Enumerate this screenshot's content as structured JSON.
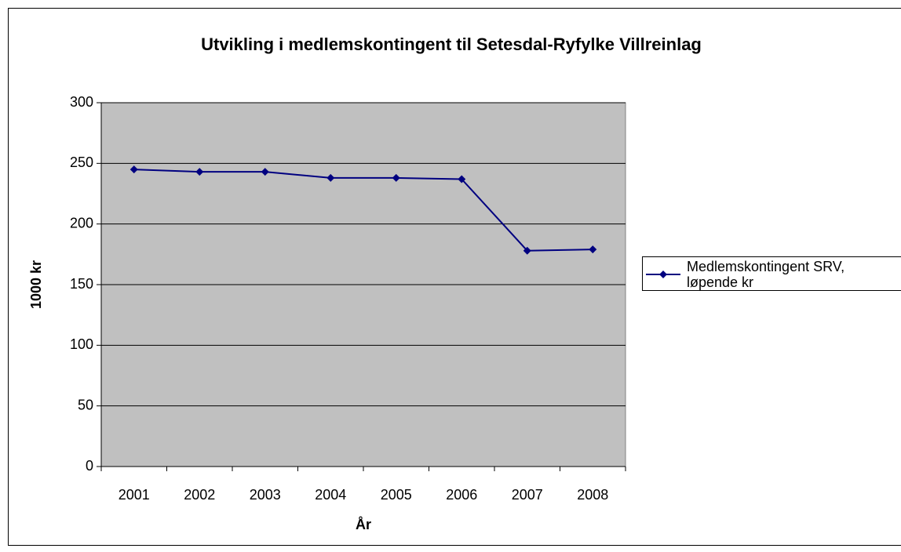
{
  "chart_data": {
    "type": "line",
    "title": "Utvikling i medlemskontingent til Setesdal-Ryfylke Villreinlag",
    "x_label": "År",
    "y_label": "1000 kr",
    "categories": [
      "2001",
      "2002",
      "2003",
      "2004",
      "2005",
      "2006",
      "2007",
      "2008"
    ],
    "series": [
      {
        "name": "Medlemskontingent SRV, løpende kr",
        "color": "#000080",
        "values": [
          245,
          243,
          243,
          238,
          238,
          237,
          178,
          179
        ]
      }
    ],
    "ylim": [
      0,
      300
    ],
    "yticks": [
      0,
      50,
      100,
      150,
      200,
      250,
      300
    ],
    "grid": true,
    "plot_background": "#c0c0c0",
    "legend": "right"
  }
}
